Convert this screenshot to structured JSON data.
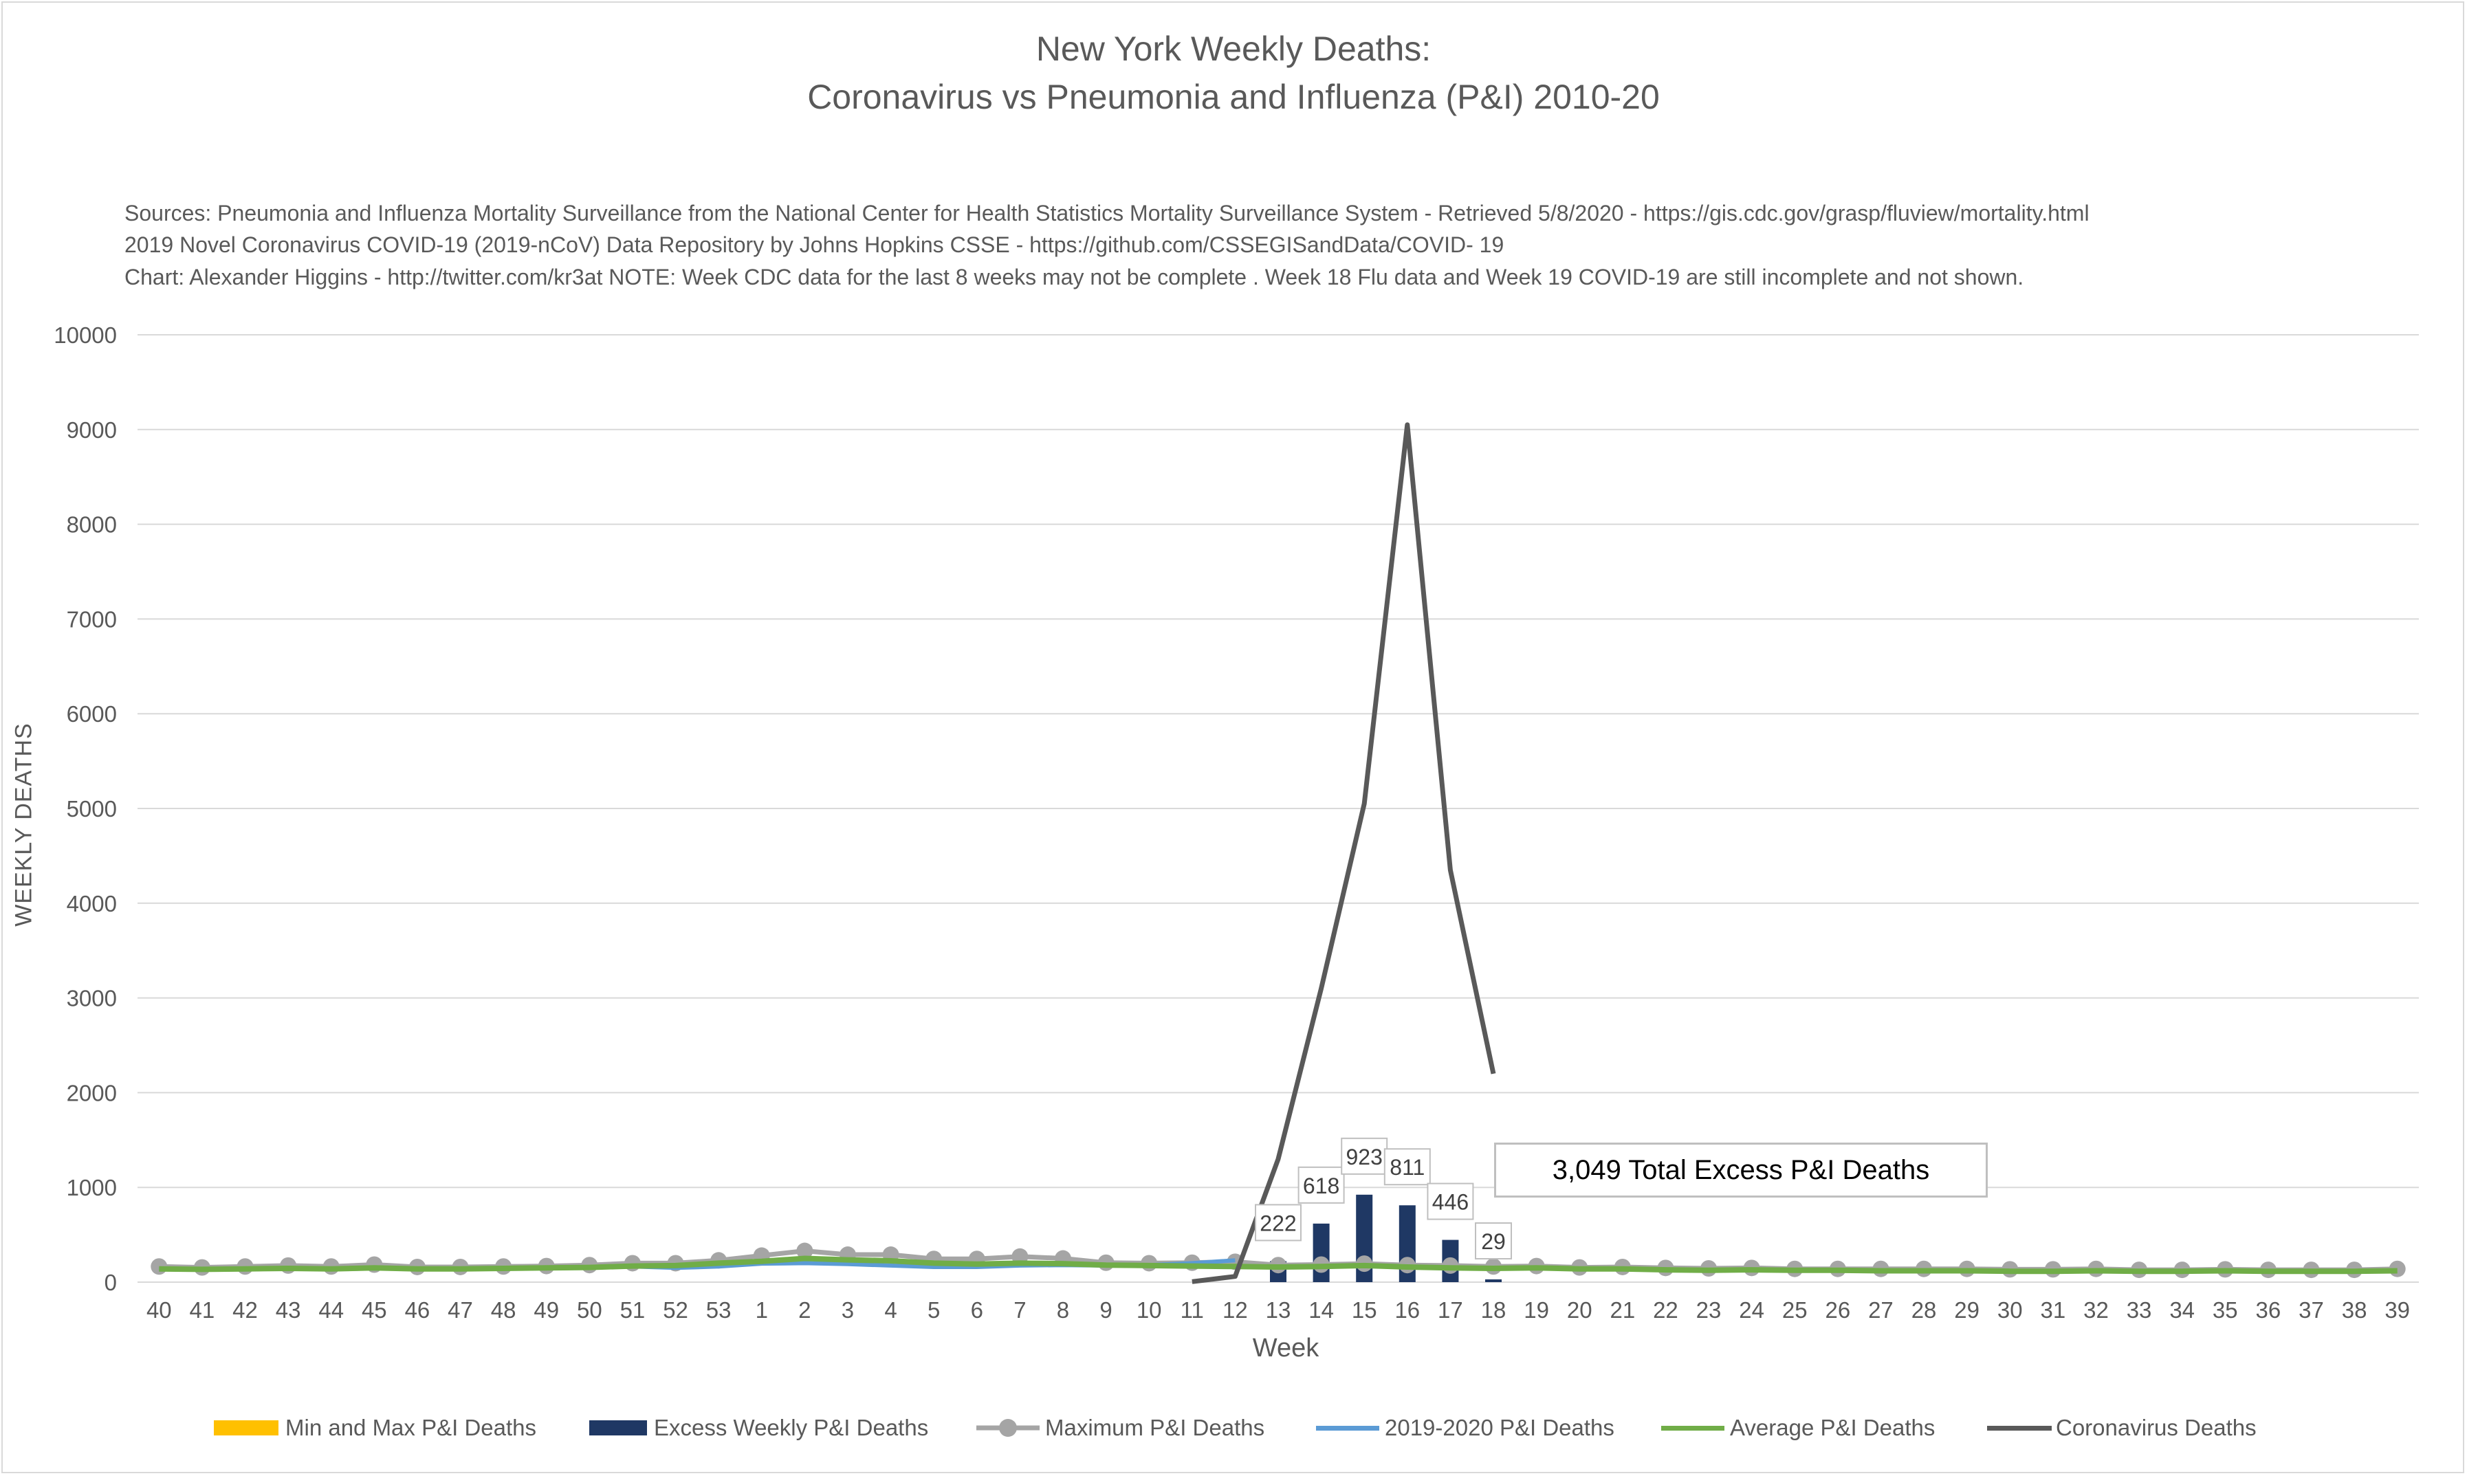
{
  "header": {
    "title_line1": "New York Weekly Deaths:",
    "title_line2": "Coronavirus vs Pneumonia and Influenza (P&I) 2010-20"
  },
  "sources": {
    "line1": "Sources: Pneumonia and Influenza Mortality Surveillance from the National Center for Health Statistics Mortality Surveillance System - Retrieved 5/8/2020 - https://gis.cdc.gov/grasp/fluview/mortality.html",
    "line2": "2019 Novel Coronavirus COVID-19 (2019-nCoV) Data Repository by Johns Hopkins CSSE - https://github.com/CSSEGISandData/COVID- 19",
    "line3": "Chart: Alexander Higgins - http://twitter.com/kr3at   NOTE: Week CDC data for the last 8 weeks may not be complete . Week 18 Flu data and Week 19 COVID-19 are still incomplete and not shown."
  },
  "callout": {
    "text": "3,049 Total Excess P&I Deaths"
  },
  "colors": {
    "minmax": "#FFC000",
    "excess": "#1F3864",
    "maximum": "#A5A5A5",
    "current": "#5B9BD5",
    "average": "#70AD47",
    "covid": "#595959"
  },
  "chart_data": {
    "type": "line",
    "xlabel": "Week",
    "ylabel": "WEEKLY DEATHS",
    "ylim": [
      0,
      10000
    ],
    "yticks": [
      0,
      1000,
      2000,
      3000,
      4000,
      5000,
      6000,
      7000,
      8000,
      9000,
      10000
    ],
    "grid": true,
    "legend_position": "bottom",
    "categories": [
      "40",
      "41",
      "42",
      "43",
      "44",
      "45",
      "46",
      "47",
      "48",
      "49",
      "50",
      "51",
      "52",
      "53",
      "1",
      "2",
      "3",
      "4",
      "5",
      "6",
      "7",
      "8",
      "9",
      "10",
      "11",
      "12",
      "13",
      "14",
      "15",
      "16",
      "17",
      "18",
      "19",
      "20",
      "21",
      "22",
      "23",
      "24",
      "25",
      "26",
      "27",
      "28",
      "29",
      "30",
      "31",
      "32",
      "33",
      "34",
      "35",
      "36",
      "37",
      "38",
      "39"
    ],
    "series": [
      {
        "name": "Min and Max P&I Deaths",
        "type": "area",
        "values": [
          140,
          135,
          140,
          145,
          140,
          150,
          140,
          140,
          145,
          150,
          155,
          170,
          175,
          200,
          220,
          250,
          235,
          225,
          200,
          190,
          200,
          195,
          180,
          175,
          170,
          165,
          160,
          165,
          175,
          160,
          150,
          145,
          150,
          140,
          140,
          130,
          125,
          130,
          125,
          125,
          120,
          120,
          120,
          115,
          115,
          120,
          115,
          115,
          120,
          115,
          115,
          115,
          120
        ]
      },
      {
        "name": "Excess Weekly P&I Deaths",
        "type": "bar",
        "values": [
          0,
          0,
          0,
          0,
          0,
          0,
          0,
          0,
          0,
          0,
          0,
          0,
          0,
          0,
          0,
          0,
          0,
          0,
          0,
          0,
          0,
          0,
          0,
          0,
          0,
          0,
          222,
          618,
          923,
          811,
          446,
          29,
          0,
          0,
          0,
          0,
          0,
          0,
          0,
          0,
          0,
          0,
          0,
          0,
          0,
          0,
          0,
          0,
          0,
          0,
          0,
          0,
          0
        ]
      },
      {
        "name": "Maximum P&I Deaths",
        "type": "line-marker",
        "values": [
          165,
          155,
          165,
          175,
          165,
          185,
          160,
          160,
          165,
          170,
          180,
          200,
          200,
          230,
          280,
          330,
          290,
          290,
          245,
          245,
          270,
          250,
          205,
          200,
          205,
          215,
          180,
          185,
          195,
          180,
          175,
          165,
          170,
          155,
          160,
          150,
          145,
          150,
          140,
          140,
          140,
          140,
          140,
          135,
          135,
          140,
          130,
          130,
          135,
          130,
          130,
          130,
          140
        ]
      },
      {
        "name": "2019-2020 P&I Deaths",
        "type": "line",
        "values": [
          135,
          130,
          140,
          150,
          135,
          145,
          140,
          145,
          150,
          150,
          155,
          165,
          150,
          165,
          195,
          200,
          190,
          175,
          160,
          160,
          175,
          180,
          175,
          180,
          200,
          230,
          null,
          null,
          null,
          null,
          null,
          null,
          null,
          null,
          null,
          null,
          null,
          null,
          null,
          null,
          null,
          null,
          null,
          null,
          null,
          null,
          null,
          null,
          null,
          null,
          null,
          null,
          null
        ]
      },
      {
        "name": "Average P&I Deaths",
        "type": "line",
        "values": [
          140,
          135,
          140,
          145,
          140,
          150,
          140,
          140,
          145,
          150,
          155,
          170,
          175,
          200,
          220,
          250,
          235,
          225,
          200,
          190,
          200,
          195,
          180,
          175,
          170,
          165,
          160,
          165,
          175,
          160,
          150,
          145,
          150,
          140,
          140,
          130,
          125,
          130,
          125,
          125,
          120,
          120,
          120,
          115,
          115,
          120,
          115,
          115,
          120,
          115,
          115,
          115,
          120
        ]
      },
      {
        "name": "Coronavirus Deaths",
        "type": "line",
        "values": [
          null,
          null,
          null,
          null,
          null,
          null,
          null,
          null,
          null,
          null,
          null,
          null,
          null,
          null,
          null,
          null,
          null,
          null,
          null,
          null,
          null,
          null,
          null,
          null,
          5,
          60,
          1300,
          3100,
          5050,
          9050,
          4350,
          2200,
          null,
          null,
          null,
          null,
          null,
          null,
          null,
          null,
          null,
          null,
          null,
          null,
          null,
          null,
          null,
          null,
          null,
          null,
          null,
          null,
          null
        ]
      }
    ]
  }
}
